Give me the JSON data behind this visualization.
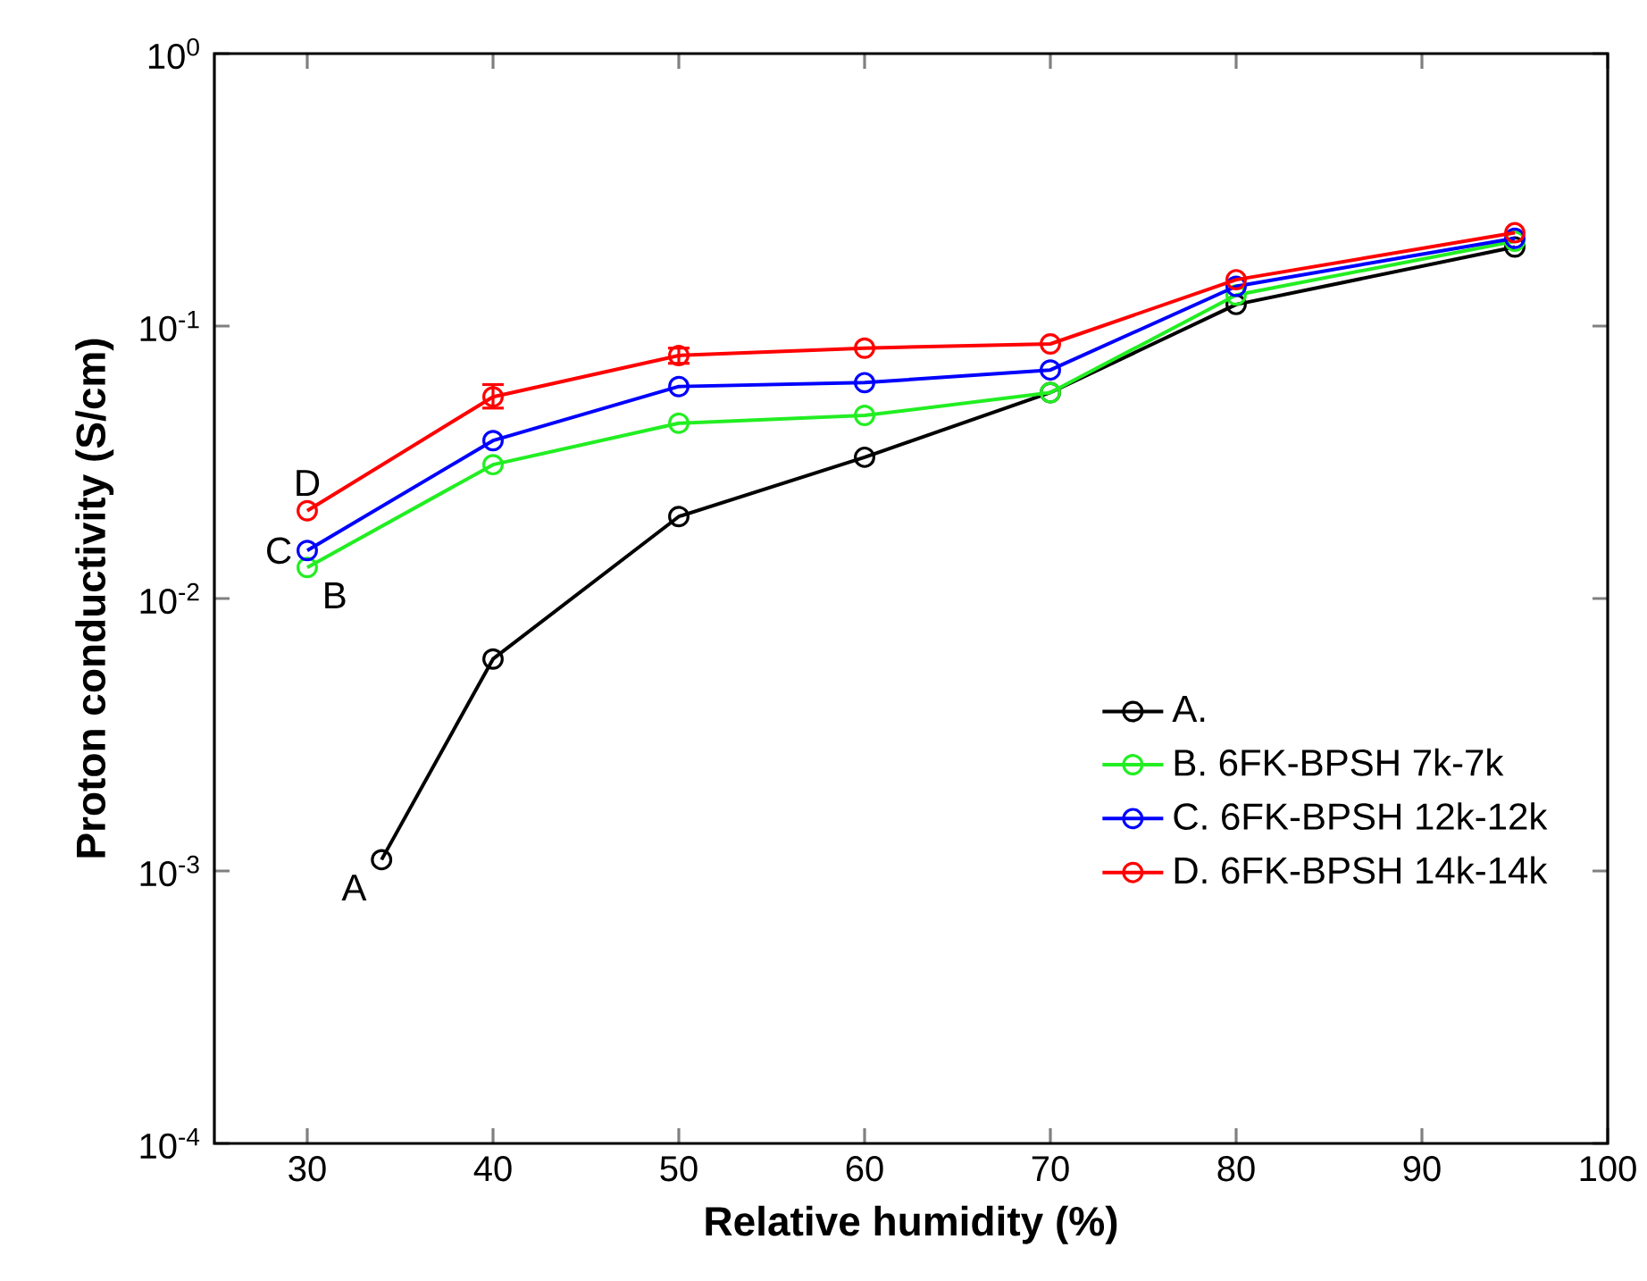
{
  "chart_data": {
    "type": "line",
    "xlabel": "Relative humidity (%)",
    "ylabel": "Proton conductivity (S/cm)",
    "log": "y",
    "xlim": [
      25,
      100
    ],
    "xticks": [
      30,
      40,
      50,
      60,
      70,
      80,
      90,
      100
    ],
    "ylim": [
      0.0001,
      1
    ],
    "yticks": [
      {
        "value": 0.0001,
        "label": "10$^{-4}$"
      },
      {
        "value": 0.001,
        "label": "10$^{-3}$"
      },
      {
        "value": 0.01,
        "label": "10$^{-2}$"
      },
      {
        "value": 0.1,
        "label": "10$^{-1}$"
      },
      {
        "value": 1,
        "label": "10$^{0}$"
      }
    ],
    "grid": false,
    "legend": "bottom right",
    "marker": "circle",
    "line_style": "solid",
    "series": [
      {
        "name": "A.",
        "color": "#000000",
        "x": [
          34,
          40,
          50,
          60,
          70,
          80,
          95
        ],
        "values": [
          0.0011,
          0.006,
          0.02,
          0.033,
          0.057,
          0.12,
          0.195
        ]
      },
      {
        "name": "B. 6FK-BPSH 7k-7k",
        "color": "#22ee22",
        "x": [
          30,
          40,
          50,
          60,
          70,
          80,
          95
        ],
        "values": [
          0.013,
          0.031,
          0.044,
          0.047,
          0.057,
          0.13,
          0.205
        ]
      },
      {
        "name": "C. 6FK-BPSH 12k-12k",
        "color": "#0000ff",
        "x": [
          30,
          40,
          50,
          60,
          70,
          80,
          95
        ],
        "values": [
          0.015,
          0.038,
          0.06,
          0.062,
          0.069,
          0.14,
          0.21
        ]
      },
      {
        "name": "D. 6FK-BPSH 14k-14k",
        "color": "#ff0000",
        "x": [
          30,
          40,
          50,
          60,
          70,
          80,
          95
        ],
        "values": [
          0.021,
          0.055,
          0.078,
          0.083,
          0.086,
          0.148,
          0.22
        ],
        "errors": [
          null,
          [
            0.05,
            0.061
          ],
          [
            0.073,
            0.083
          ],
          null,
          null,
          null,
          null
        ]
      }
    ],
    "annotations": [
      "A",
      "B",
      "C",
      "D"
    ]
  }
}
